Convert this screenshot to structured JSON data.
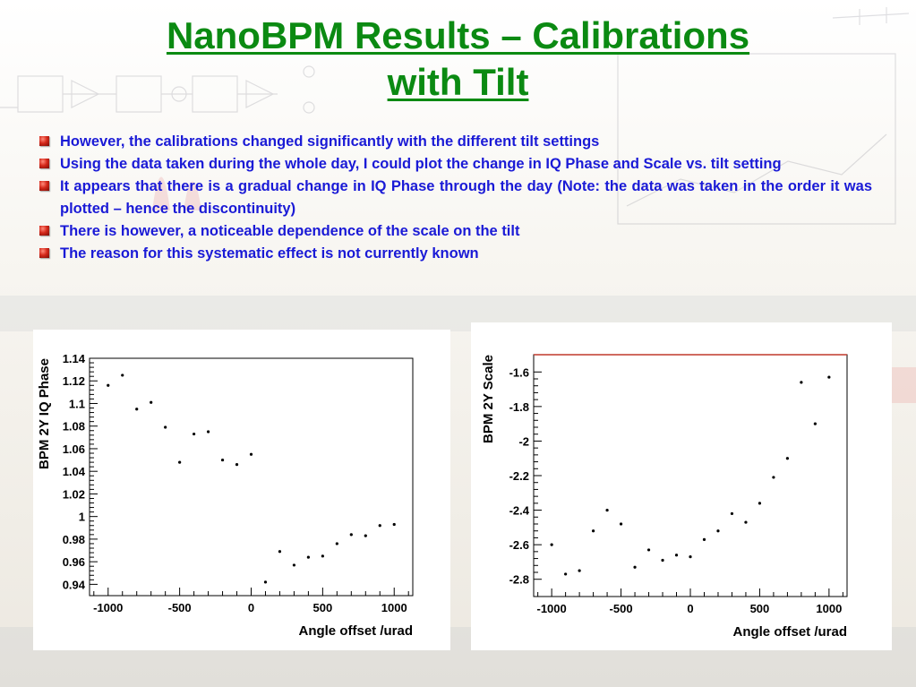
{
  "slide": {
    "title_line1": "NanoBPM Results – Calibrations",
    "title_line2": "with Tilt",
    "bullets": [
      "However, the calibrations changed significantly with the different tilt settings",
      "Using the data taken during the whole day, I could plot the change in IQ Phase and Scale vs. tilt setting",
      "It appears that there is a gradual change in IQ Phase through the day (Note: the data was taken in the order it was plotted – hence the discontinuity)",
      "There is however, a noticeable dependence of the scale on the tilt",
      "The reason for this systematic effect is not currently known"
    ],
    "colors": {
      "title": "#0b8a12",
      "bullet_text": "#1a1ad6",
      "bullet_marker": "#c0201a"
    }
  },
  "chart_data": [
    {
      "type": "scatter",
      "title": "",
      "xlabel": "Angle offset /urad",
      "ylabel": "BPM 2Y IQ Phase",
      "xlim": [
        -1130,
        1130
      ],
      "ylim": [
        0.93,
        1.14
      ],
      "x_ticks": [
        -1000,
        -500,
        0,
        500,
        1000
      ],
      "x_tick_labels": [
        "-1000",
        "-500",
        "0",
        "500",
        "1000"
      ],
      "y_ticks": [
        0.94,
        0.96,
        0.98,
        1.0,
        1.02,
        1.04,
        1.06,
        1.08,
        1.1,
        1.12,
        1.14
      ],
      "y_tick_labels": [
        "0.94",
        "0.96",
        "0.98",
        "1",
        "1.02",
        "1.04",
        "1.06",
        "1.08",
        "1.1",
        "1.12",
        "1.14"
      ],
      "grid": false,
      "points": [
        {
          "x": -1000,
          "y": 1.116
        },
        {
          "x": -900,
          "y": 1.125
        },
        {
          "x": -800,
          "y": 1.095
        },
        {
          "x": -700,
          "y": 1.101
        },
        {
          "x": -600,
          "y": 1.079
        },
        {
          "x": -500,
          "y": 1.048
        },
        {
          "x": -400,
          "y": 1.073
        },
        {
          "x": -300,
          "y": 1.075
        },
        {
          "x": -200,
          "y": 1.05
        },
        {
          "x": -100,
          "y": 1.046
        },
        {
          "x": 0,
          "y": 1.055
        },
        {
          "x": 100,
          "y": 0.942
        },
        {
          "x": 200,
          "y": 0.969
        },
        {
          "x": 300,
          "y": 0.957
        },
        {
          "x": 400,
          "y": 0.964
        },
        {
          "x": 500,
          "y": 0.965
        },
        {
          "x": 600,
          "y": 0.976
        },
        {
          "x": 700,
          "y": 0.984
        },
        {
          "x": 800,
          "y": 0.983
        },
        {
          "x": 900,
          "y": 0.992
        },
        {
          "x": 1000,
          "y": 0.993
        }
      ]
    },
    {
      "type": "scatter",
      "title": "",
      "xlabel": "Angle offset /urad",
      "ylabel": "BPM 2Y Scale",
      "xlim": [
        -1130,
        1130
      ],
      "ylim": [
        -2.9,
        -1.5
      ],
      "x_ticks": [
        -1000,
        -500,
        0,
        500,
        1000
      ],
      "x_tick_labels": [
        "-1000",
        "-500",
        "0",
        "500",
        "1000"
      ],
      "y_ticks": [
        -2.8,
        -2.6,
        -2.4,
        -2.2,
        -2.0,
        -1.8,
        -1.6
      ],
      "y_tick_labels": [
        "-2.8",
        "-2.6",
        "-2.4",
        "-2.2",
        "-2",
        "-1.8",
        "-1.6"
      ],
      "grid": false,
      "points": [
        {
          "x": -1000,
          "y": -2.6
        },
        {
          "x": -900,
          "y": -2.77
        },
        {
          "x": -800,
          "y": -2.75
        },
        {
          "x": -700,
          "y": -2.52
        },
        {
          "x": -600,
          "y": -2.4
        },
        {
          "x": -500,
          "y": -2.48
        },
        {
          "x": -400,
          "y": -2.73
        },
        {
          "x": -300,
          "y": -2.63
        },
        {
          "x": -200,
          "y": -2.69
        },
        {
          "x": -100,
          "y": -2.66
        },
        {
          "x": 0,
          "y": -2.67
        },
        {
          "x": 100,
          "y": -2.57
        },
        {
          "x": 200,
          "y": -2.52
        },
        {
          "x": 300,
          "y": -2.42
        },
        {
          "x": 400,
          "y": -2.47
        },
        {
          "x": 500,
          "y": -2.36
        },
        {
          "x": 600,
          "y": -2.21
        },
        {
          "x": 700,
          "y": -2.1
        },
        {
          "x": 800,
          "y": -1.66
        },
        {
          "x": 900,
          "y": -1.9
        },
        {
          "x": 1000,
          "y": -1.63
        }
      ]
    }
  ]
}
